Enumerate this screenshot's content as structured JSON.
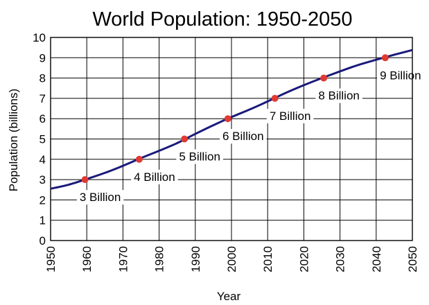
{
  "chart_data": {
    "type": "line",
    "title": "World Population: 1950-2050",
    "xlabel": "Year",
    "ylabel": "Population  (billions)",
    "xlim": [
      1950,
      2050
    ],
    "ylim": [
      0,
      10
    ],
    "grid": true,
    "x_ticks": [
      "1950",
      "1960",
      "1970",
      "1980",
      "1990",
      "2000",
      "2010",
      "2020",
      "2030",
      "2040",
      "2050"
    ],
    "y_ticks": [
      "0",
      "1",
      "2",
      "3",
      "4",
      "5",
      "6",
      "7",
      "8",
      "9",
      "10"
    ],
    "series": [
      {
        "color": "#1a1a7a",
        "x": [
          1950,
          1955,
          1960,
          1965,
          1970,
          1975,
          1980,
          1985,
          1990,
          1995,
          2000,
          2005,
          2010,
          2015,
          2020,
          2025,
          2030,
          2035,
          2040,
          2045,
          2050
        ],
        "y": [
          2.55,
          2.75,
          3.03,
          3.33,
          3.68,
          4.06,
          4.42,
          4.8,
          5.25,
          5.68,
          6.08,
          6.45,
          6.85,
          7.27,
          7.65,
          8.0,
          8.33,
          8.64,
          8.9,
          9.15,
          9.38
        ]
      }
    ],
    "milestones": [
      {
        "x": 1959.5,
        "y": 3,
        "label": "3 Billion"
      },
      {
        "x": 1974.5,
        "y": 4,
        "label": "4 Billion"
      },
      {
        "x": 1987,
        "y": 5,
        "label": "5 Billion"
      },
      {
        "x": 1999,
        "y": 6,
        "label": "6 Billion"
      },
      {
        "x": 2012,
        "y": 7,
        "label": "7 Billion"
      },
      {
        "x": 2025.5,
        "y": 8,
        "label": "8 Billion"
      },
      {
        "x": 2042.5,
        "y": 9,
        "label": "9 Billion"
      }
    ],
    "marker_color": "#e03a33"
  }
}
